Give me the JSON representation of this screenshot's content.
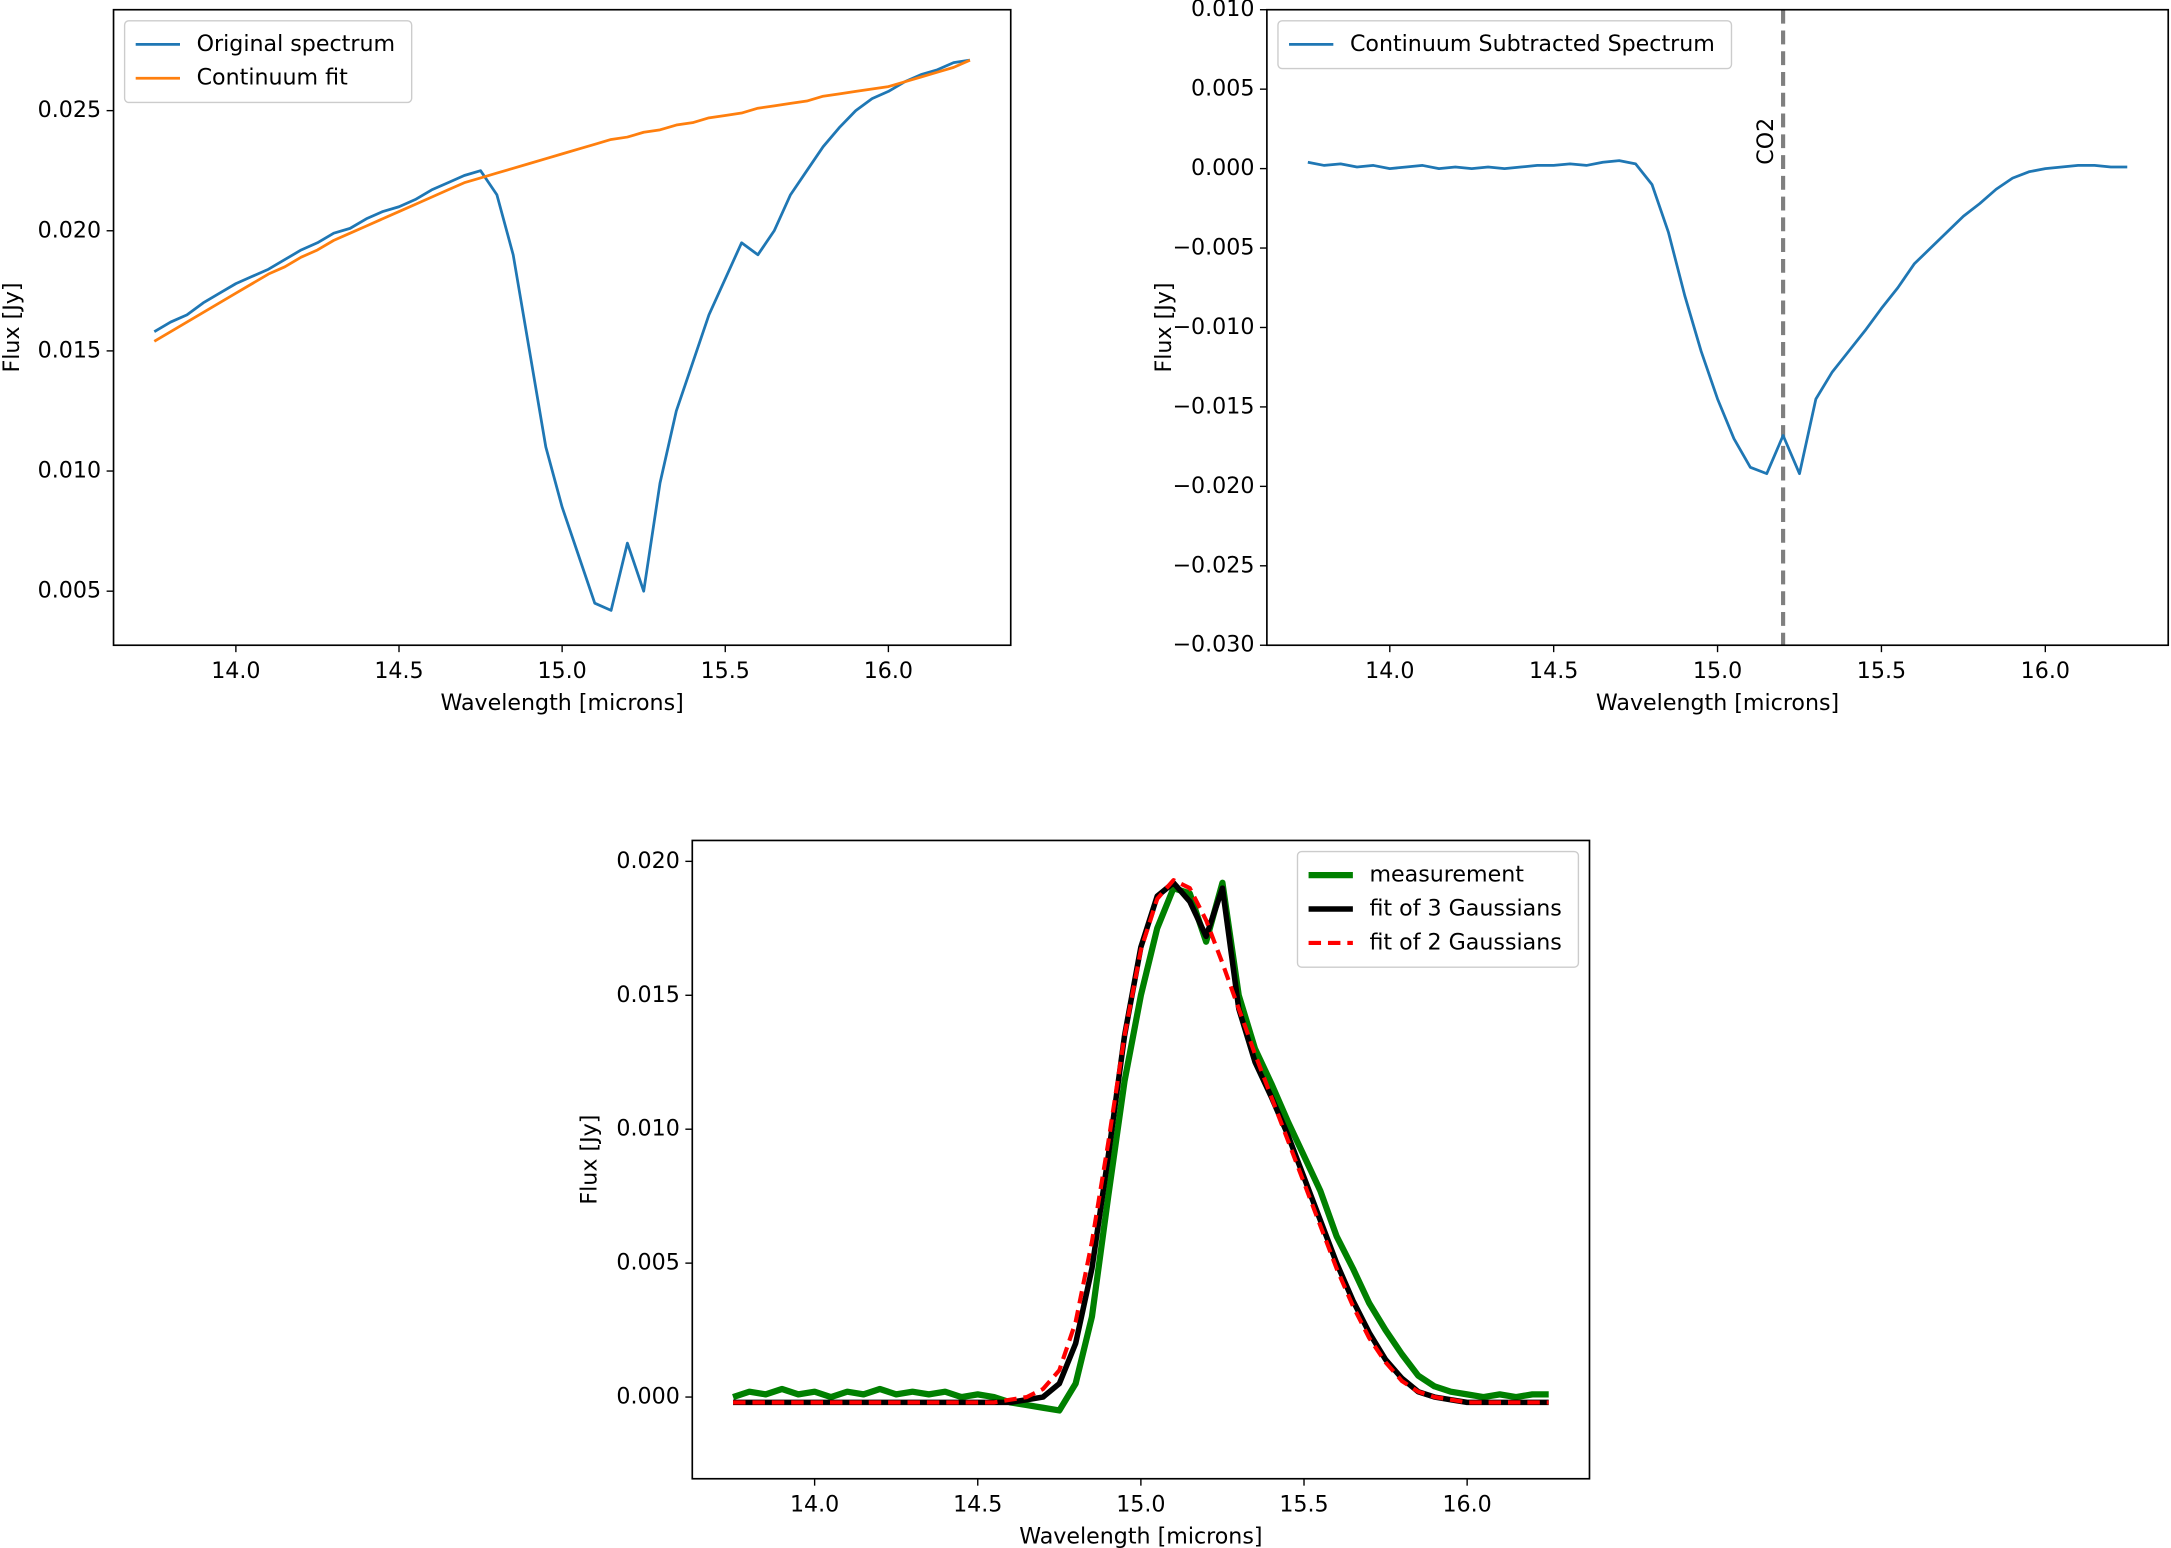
{
  "chart_data": [
    {
      "type": "line",
      "xlabel": "Wavelength [microns]",
      "ylabel": "Flux [Jy]",
      "legend": "upper left",
      "xlim": [
        13.625,
        16.375
      ],
      "ylim": [
        0.00275,
        0.0292
      ],
      "xticks": [
        {
          "value": 14,
          "label": "14.0"
        },
        14.5,
        {
          "value": 15,
          "label": "15.0"
        },
        15.5,
        {
          "value": 16,
          "label": "16.0"
        }
      ],
      "yticks": [
        0.005,
        {
          "value": 0.01,
          "label": "0.010"
        },
        0.015,
        {
          "value": 0.02,
          "label": "0.020"
        },
        0.025
      ],
      "x": [
        13.75,
        13.8,
        13.85,
        13.9,
        13.95,
        14.0,
        14.05,
        14.1,
        14.15,
        14.2,
        14.25,
        14.3,
        14.35,
        14.4,
        14.45,
        14.5,
        14.55,
        14.6,
        14.65,
        14.7,
        14.75,
        14.8,
        14.85,
        14.9,
        14.95,
        15.0,
        15.05,
        15.1,
        15.15,
        15.2,
        15.25,
        15.3,
        15.35,
        15.4,
        15.45,
        15.5,
        15.55,
        15.6,
        15.65,
        15.7,
        15.75,
        15.8,
        15.85,
        15.9,
        15.95,
        16.0,
        16.05,
        16.1,
        16.15,
        16.2,
        16.25
      ],
      "series": [
        {
          "name": "Original spectrum",
          "color": "#1f77b4",
          "width": 2,
          "values": [
            0.0158,
            0.0162,
            0.0165,
            0.017,
            0.0174,
            0.0178,
            0.0181,
            0.0184,
            0.0188,
            0.0192,
            0.0195,
            0.0199,
            0.0201,
            0.0205,
            0.0208,
            0.021,
            0.0213,
            0.0217,
            0.022,
            0.0223,
            0.0225,
            0.0215,
            0.019,
            0.015,
            0.011,
            0.0085,
            0.0065,
            0.0045,
            0.0042,
            0.007,
            0.005,
            0.0095,
            0.0125,
            0.0145,
            0.0165,
            0.018,
            0.0195,
            0.019,
            0.02,
            0.0215,
            0.0225,
            0.0235,
            0.0243,
            0.025,
            0.0255,
            0.0258,
            0.0262,
            0.0265,
            0.0267,
            0.027,
            0.0271
          ]
        },
        {
          "name": "Continuum fit",
          "color": "#ff7f0e",
          "width": 2,
          "values": [
            0.0154,
            0.0158,
            0.0162,
            0.0166,
            0.017,
            0.0174,
            0.0178,
            0.0182,
            0.0185,
            0.0189,
            0.0192,
            0.0196,
            0.0199,
            0.0202,
            0.0205,
            0.0208,
            0.0211,
            0.0214,
            0.0217,
            0.022,
            0.0222,
            0.0224,
            0.0226,
            0.0228,
            0.023,
            0.0232,
            0.0234,
            0.0236,
            0.0238,
            0.0239,
            0.0241,
            0.0242,
            0.0244,
            0.0245,
            0.0247,
            0.0248,
            0.0249,
            0.0251,
            0.0252,
            0.0253,
            0.0254,
            0.0256,
            0.0257,
            0.0258,
            0.0259,
            0.026,
            0.0262,
            0.0264,
            0.0266,
            0.0268,
            0.0271
          ]
        }
      ]
    },
    {
      "type": "line",
      "xlabel": "Wavelength [microns]",
      "ylabel": "Flux [Jy]",
      "legend": "upper left",
      "xlim": [
        13.625,
        16.375
      ],
      "ylim": [
        -0.03,
        0.01
      ],
      "xticks": [
        {
          "value": 14,
          "label": "14.0"
        },
        14.5,
        {
          "value": 15,
          "label": "15.0"
        },
        15.5,
        {
          "value": 16,
          "label": "16.0"
        }
      ],
      "yticks": [
        {
          "value": -0.03,
          "label": "−0.030"
        },
        {
          "value": -0.025,
          "label": "−0.025"
        },
        {
          "value": -0.02,
          "label": "−0.020"
        },
        {
          "value": -0.015,
          "label": "−0.015"
        },
        {
          "value": -0.01,
          "label": "−0.010"
        },
        {
          "value": -0.005,
          "label": "−0.005"
        },
        {
          "value": 0,
          "label": "0.000"
        },
        0.005,
        {
          "value": 0.01,
          "label": "0.010"
        }
      ],
      "vline": {
        "x": 15.2,
        "label": "CO2",
        "color": "#7f7f7f"
      },
      "x": [
        13.75,
        13.8,
        13.85,
        13.9,
        13.95,
        14.0,
        14.05,
        14.1,
        14.15,
        14.2,
        14.25,
        14.3,
        14.35,
        14.4,
        14.45,
        14.5,
        14.55,
        14.6,
        14.65,
        14.7,
        14.75,
        14.8,
        14.85,
        14.9,
        14.95,
        15.0,
        15.05,
        15.1,
        15.15,
        15.2,
        15.25,
        15.3,
        15.35,
        15.4,
        15.45,
        15.5,
        15.55,
        15.6,
        15.65,
        15.7,
        15.75,
        15.8,
        15.85,
        15.9,
        15.95,
        16.0,
        16.05,
        16.1,
        16.15,
        16.2,
        16.25
      ],
      "series": [
        {
          "name": "Continuum Subtracted Spectrum",
          "color": "#1f77b4",
          "width": 2,
          "values": [
            0.0004,
            0.0002,
            0.0003,
            0.0001,
            0.0002,
            0.0,
            0.0001,
            0.0002,
            0.0,
            0.0001,
            0.0,
            0.0001,
            0.0,
            0.0001,
            0.0002,
            0.0002,
            0.0003,
            0.0002,
            0.0004,
            0.0005,
            0.0003,
            -0.001,
            -0.004,
            -0.008,
            -0.0115,
            -0.0145,
            -0.017,
            -0.0188,
            -0.0192,
            -0.0168,
            -0.0192,
            -0.0145,
            -0.0128,
            -0.0115,
            -0.0102,
            -0.0088,
            -0.0075,
            -0.006,
            -0.005,
            -0.004,
            -0.003,
            -0.0022,
            -0.0013,
            -0.0006,
            -0.0002,
            0.0,
            0.0001,
            0.0002,
            0.0002,
            0.0001,
            0.0001
          ]
        }
      ]
    },
    {
      "type": "line",
      "xlabel": "Wavelength [microns]",
      "ylabel": "Flux [Jy]",
      "legend": "upper right",
      "xlim": [
        13.625,
        16.375
      ],
      "ylim": [
        -0.00305,
        0.02078
      ],
      "xticks": [
        {
          "value": 14,
          "label": "14.0"
        },
        14.5,
        {
          "value": 15,
          "label": "15.0"
        },
        15.5,
        {
          "value": 16,
          "label": "16.0"
        }
      ],
      "yticks": [
        {
          "value": 0,
          "label": "0.000"
        },
        0.005,
        {
          "value": 0.01,
          "label": "0.010"
        },
        0.015,
        {
          "value": 0.02,
          "label": "0.020"
        }
      ],
      "x": [
        13.75,
        13.8,
        13.85,
        13.9,
        13.95,
        14.0,
        14.05,
        14.1,
        14.15,
        14.2,
        14.25,
        14.3,
        14.35,
        14.4,
        14.45,
        14.5,
        14.55,
        14.6,
        14.65,
        14.7,
        14.75,
        14.8,
        14.85,
        14.9,
        14.95,
        15.0,
        15.05,
        15.1,
        15.15,
        15.2,
        15.25,
        15.3,
        15.35,
        15.4,
        15.45,
        15.5,
        15.55,
        15.6,
        15.65,
        15.7,
        15.75,
        15.8,
        15.85,
        15.9,
        15.95,
        16.0,
        16.05,
        16.1,
        16.15,
        16.2,
        16.25
      ],
      "series": [
        {
          "name": "measurement",
          "color": "#008000",
          "width": 4.5,
          "values": [
            0.0,
            0.0002,
            0.0001,
            0.0003,
            0.0001,
            0.0002,
            0.0,
            0.0002,
            0.0001,
            0.0003,
            0.0001,
            0.0002,
            0.0001,
            0.0002,
            0.0,
            0.0001,
            0.0,
            -0.0002,
            -0.0003,
            -0.0004,
            -0.0005,
            0.0005,
            0.003,
            0.0075,
            0.0118,
            0.015,
            0.0175,
            0.019,
            0.0188,
            0.017,
            0.0192,
            0.015,
            0.013,
            0.0117,
            0.0103,
            0.009,
            0.0077,
            0.006,
            0.0048,
            0.0035,
            0.0025,
            0.0016,
            0.0008,
            0.0004,
            0.0002,
            0.0001,
            0.0,
            0.0001,
            0.0,
            0.0001,
            0.0001
          ]
        },
        {
          "name": "fit of 3 Gaussians",
          "color": "#000000",
          "width": 4,
          "values": [
            -0.0002,
            -0.0002,
            -0.0002,
            -0.0002,
            -0.0002,
            -0.0002,
            -0.0002,
            -0.0002,
            -0.0002,
            -0.0002,
            -0.0002,
            -0.0002,
            -0.0002,
            -0.0002,
            -0.0002,
            -0.0002,
            -0.0002,
            -0.0002,
            -0.0001,
            0.0,
            0.0005,
            0.002,
            0.0048,
            0.009,
            0.0135,
            0.0168,
            0.0187,
            0.0192,
            0.0185,
            0.0172,
            0.019,
            0.0145,
            0.0125,
            0.0112,
            0.0098,
            0.0082,
            0.0066,
            0.005,
            0.0036,
            0.0024,
            0.0014,
            0.0007,
            0.0002,
            0.0,
            -0.0001,
            -0.0002,
            -0.0002,
            -0.0002,
            -0.0002,
            -0.0002,
            -0.0002
          ]
        },
        {
          "name": "fit of 2 Gaussians",
          "color": "#ff0000",
          "width": 3,
          "dash": true,
          "values": [
            -0.0002,
            -0.0002,
            -0.0002,
            -0.0002,
            -0.0002,
            -0.0002,
            -0.0002,
            -0.0002,
            -0.0002,
            -0.0002,
            -0.0002,
            -0.0002,
            -0.0002,
            -0.0002,
            -0.0002,
            -0.0002,
            -0.0002,
            -0.0001,
            0.0,
            0.0003,
            0.001,
            0.0028,
            0.0058,
            0.0095,
            0.0135,
            0.0167,
            0.0186,
            0.0193,
            0.019,
            0.0178,
            0.0162,
            0.0145,
            0.0128,
            0.0112,
            0.0096,
            0.008,
            0.0064,
            0.0048,
            0.0034,
            0.0022,
            0.0013,
            0.0006,
            0.0002,
            0.0,
            -0.0001,
            -0.0002,
            -0.0002,
            -0.0002,
            -0.0002,
            -0.0002,
            -0.0002
          ]
        }
      ]
    }
  ]
}
